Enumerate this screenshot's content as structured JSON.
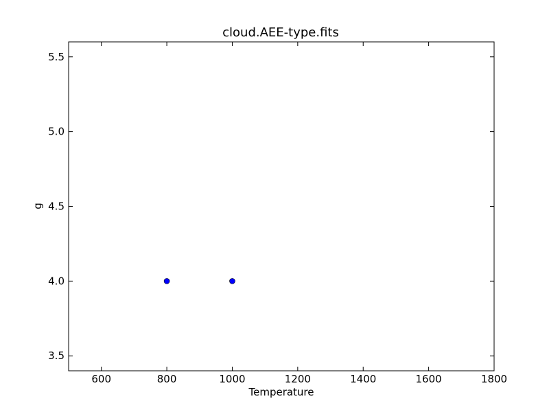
{
  "chart_data": {
    "type": "scatter",
    "title": "cloud.AEE-type.fits",
    "xlabel": "Temperature",
    "ylabel": "g",
    "xlim": [
      500,
      1800
    ],
    "ylim": [
      3.4,
      5.6
    ],
    "xticks": [
      600,
      800,
      1000,
      1200,
      1400,
      1600,
      1800
    ],
    "xtick_labels": [
      "600",
      "800",
      "1000",
      "1200",
      "1400",
      "1600",
      "1800"
    ],
    "yticks": [
      3.5,
      4.0,
      4.5,
      5.0,
      5.5
    ],
    "ytick_labels": [
      "3.5",
      "4.0",
      "4.5",
      "5.0",
      "5.5"
    ],
    "grid": false,
    "series": [
      {
        "x": [
          800,
          1000
        ],
        "y": [
          4.0,
          4.0
        ],
        "color": "#0000ff",
        "marker": "circle"
      }
    ]
  }
}
